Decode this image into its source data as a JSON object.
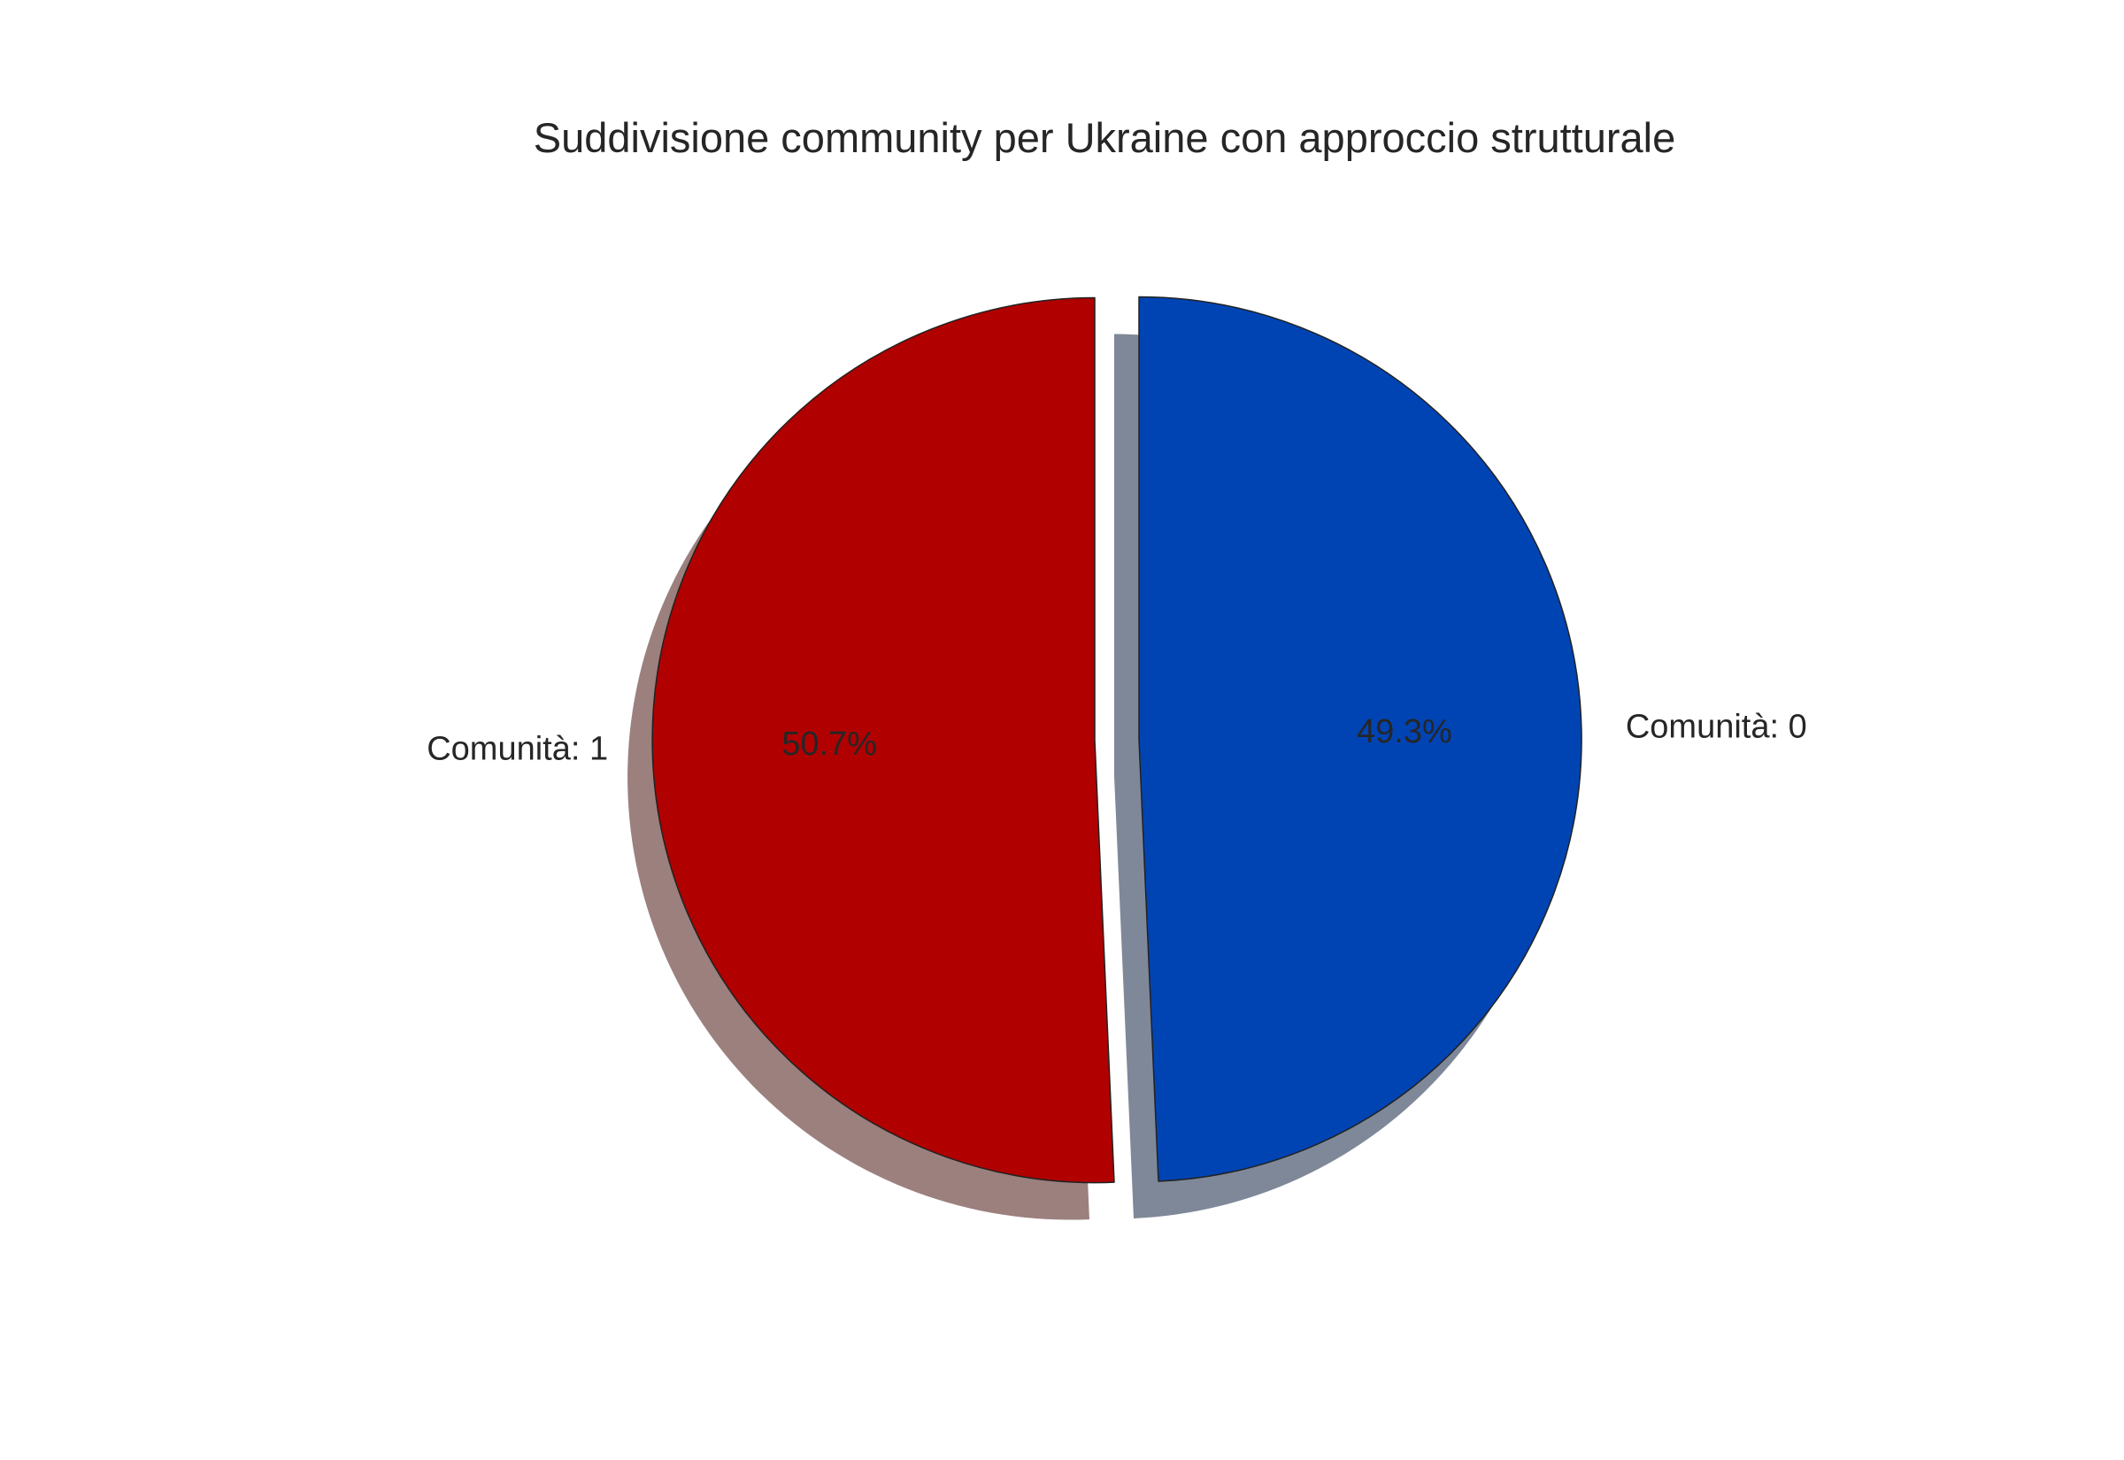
{
  "chart_data": {
    "type": "pie",
    "title": "Suddivisione community per Ukraine con approccio strutturale",
    "slices": [
      {
        "label": "Comunità: 0",
        "value": 49.3,
        "pct_label": "49.3%",
        "color": "#0044b4",
        "shadow_color": "#7f8898"
      },
      {
        "label": "Comunità: 1",
        "value": 50.7,
        "pct_label": "50.7%",
        "color": "#b10000",
        "shadow_color": "#9b807e"
      }
    ],
    "start_angle_deg": 90,
    "direction": "clockwise",
    "exploded": true,
    "shadow": true,
    "edge_color": "#222222"
  }
}
